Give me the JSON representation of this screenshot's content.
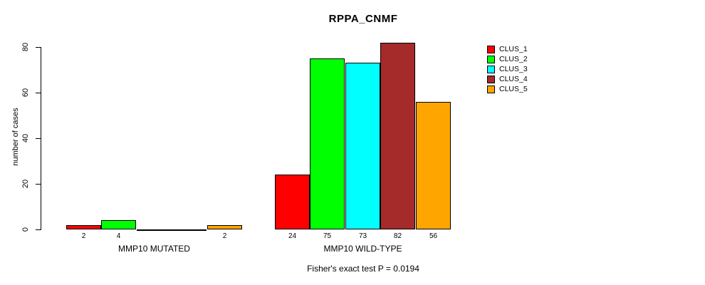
{
  "chart_data": {
    "type": "bar",
    "title": "RPPA_CNMF",
    "ylabel": "number of cases",
    "xlabel": "",
    "note": "Fisher's exact test P = 0.0194",
    "ylim": [
      0,
      80
    ],
    "yticks": [
      "0",
      "20",
      "40",
      "60",
      "80"
    ],
    "grid": false,
    "legend_position": "top-right",
    "categories": [
      "MMP10 MUTATED",
      "MMP10 WILD-TYPE"
    ],
    "series": [
      {
        "name": "CLUS_1",
        "color": "#ff0000",
        "values": [
          2,
          24
        ]
      },
      {
        "name": "CLUS_2",
        "color": "#00ff00",
        "values": [
          4,
          75
        ]
      },
      {
        "name": "CLUS_3",
        "color": "#00ffff",
        "values": [
          0,
          73
        ]
      },
      {
        "name": "CLUS_4",
        "color": "#a52a2a",
        "values": [
          0,
          82
        ]
      },
      {
        "name": "CLUS_5",
        "color": "#ffa500",
        "values": [
          2,
          56
        ]
      }
    ],
    "bar_value_labels": [
      [
        "2",
        "4",
        "",
        "",
        "2"
      ],
      [
        "24",
        "75",
        "73",
        "82",
        "56"
      ]
    ]
  }
}
